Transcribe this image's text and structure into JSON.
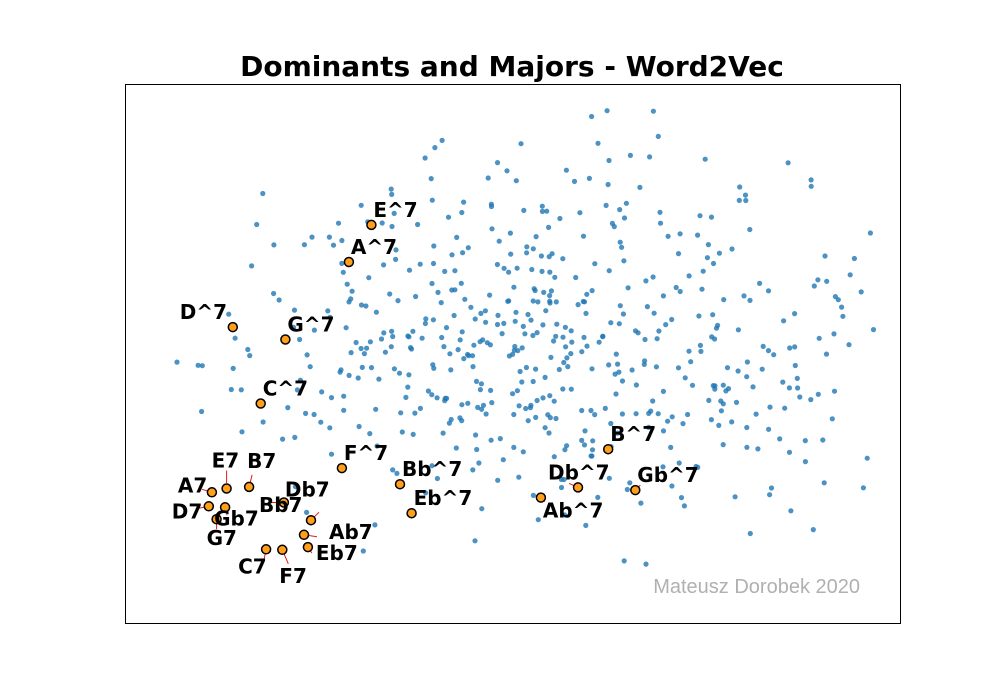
{
  "chart_data": {
    "type": "scatter",
    "title": "Dominants and Majors - Word2Vec",
    "xlabel": "",
    "ylabel": "",
    "xlim": [
      0,
      100
    ],
    "ylim": [
      0,
      100
    ],
    "grid": false,
    "watermark": "Mateusz Dorobek 2020",
    "colors": {
      "background_points": "#1f77b4",
      "highlight_fill": "#ff9f1c",
      "highlight_edge": "#000000",
      "arrow": "#e31a1c"
    },
    "highlighted_points": [
      {
        "label": "E^7",
        "x": 31.7,
        "y": 74.0
      },
      {
        "label": "A^7",
        "x": 28.8,
        "y": 67.1
      },
      {
        "label": "D^7",
        "x": 13.8,
        "y": 55.0
      },
      {
        "label": "G^7",
        "x": 20.6,
        "y": 52.7
      },
      {
        "label": "C^7",
        "x": 17.4,
        "y": 40.8
      },
      {
        "label": "F^7",
        "x": 27.9,
        "y": 28.8
      },
      {
        "label": "Bb^7",
        "x": 35.4,
        "y": 25.8
      },
      {
        "label": "Eb^7",
        "x": 36.9,
        "y": 20.4
      },
      {
        "label": "B^7",
        "x": 62.3,
        "y": 32.3
      },
      {
        "label": "Gb^7",
        "x": 65.8,
        "y": 24.7
      },
      {
        "label": "Db^7",
        "x": 58.4,
        "y": 25.2
      },
      {
        "label": "Ab^7",
        "x": 53.6,
        "y": 23.3
      },
      {
        "label": "E7",
        "x": 13.0,
        "y": 25.0
      },
      {
        "label": "B7",
        "x": 15.9,
        "y": 25.3
      },
      {
        "label": "A7",
        "x": 11.1,
        "y": 24.3
      },
      {
        "label": "Gb7",
        "x": 12.8,
        "y": 21.5
      },
      {
        "label": "D7",
        "x": 10.7,
        "y": 21.7
      },
      {
        "label": "G7",
        "x": 11.7,
        "y": 19.3
      },
      {
        "label": "Db7",
        "x": 20.4,
        "y": 22.4
      },
      {
        "label": "Bb7",
        "x": 23.9,
        "y": 19.1
      },
      {
        "label": "Ab7",
        "x": 23.0,
        "y": 16.4
      },
      {
        "label": "Eb7",
        "x": 23.5,
        "y": 14.1
      },
      {
        "label": "C7",
        "x": 18.1,
        "y": 13.7
      },
      {
        "label": "F7",
        "x": 20.2,
        "y": 13.6
      }
    ],
    "background_seed": 20200,
    "background_count": 560
  }
}
